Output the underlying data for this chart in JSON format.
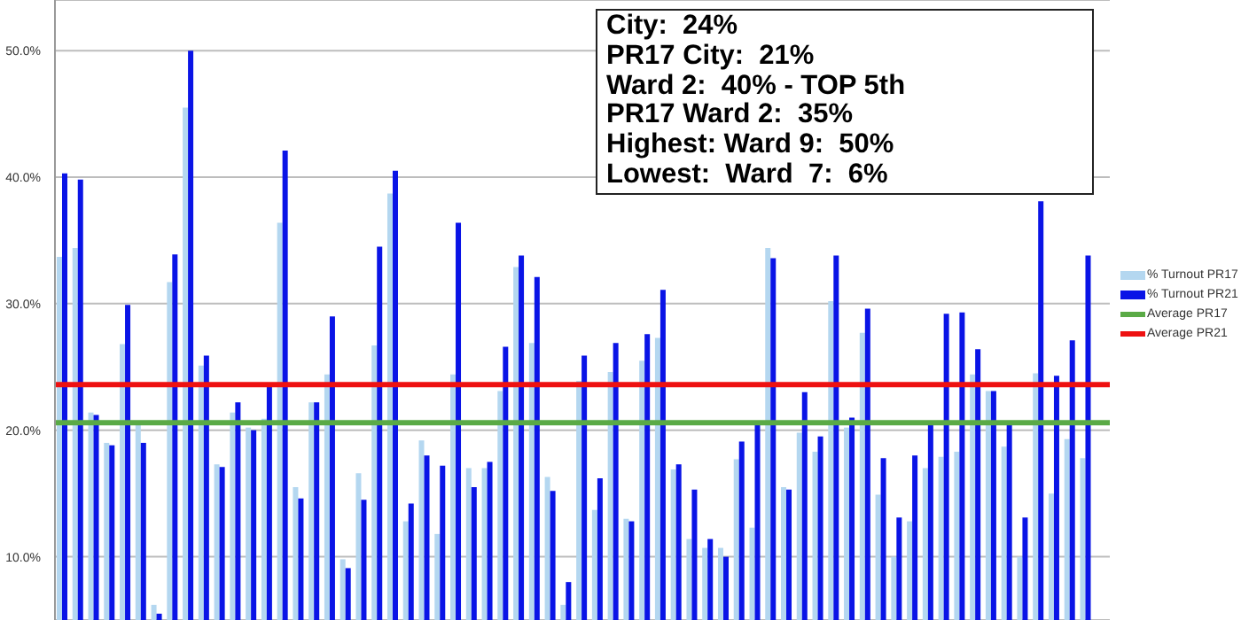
{
  "chart_data": {
    "type": "bar",
    "categories": [
      null,
      null,
      null,
      null,
      null,
      null,
      null,
      null,
      null,
      null,
      null,
      null,
      null,
      null,
      null,
      null,
      null,
      null,
      null,
      null,
      null,
      null,
      null,
      null,
      null,
      null,
      null,
      null,
      null,
      null,
      null,
      null,
      null,
      null,
      null,
      null,
      null,
      null,
      null,
      null,
      null,
      null,
      null,
      null,
      null,
      null,
      null,
      null,
      null,
      null,
      null,
      null,
      null,
      null,
      null,
      null,
      null,
      null,
      null,
      null,
      null,
      null,
      null,
      null,
      null,
      null,
      null
    ],
    "series": [
      {
        "name": "% Turnout PR17",
        "color": "#b4d7f0",
        "values": [
          33.7,
          34.4,
          21.4,
          19.0,
          26.8,
          20.4,
          6.2,
          31.7,
          45.5,
          25.1,
          17.3,
          21.4,
          20.2,
          20.9,
          36.4,
          15.5,
          22.2,
          24.4,
          9.8,
          16.6,
          26.7,
          38.7,
          12.8,
          19.2,
          11.8,
          24.4,
          17.0,
          17.0,
          23.1,
          32.9,
          26.9,
          16.3,
          6.2,
          23.9,
          13.7,
          24.6,
          13.0,
          25.5,
          27.3,
          16.9,
          11.4,
          10.7,
          10.7,
          17.7,
          12.3,
          34.4,
          15.5,
          19.8,
          18.3,
          30.2,
          20.2,
          27.7,
          14.9,
          10.0,
          12.8,
          17.0,
          17.9,
          18.3,
          24.4,
          23.1,
          18.7,
          10.0,
          24.5,
          15.0,
          19.3,
          17.8,
          null
        ]
      },
      {
        "name": "% Turnout PR21",
        "color": "#0a14e6",
        "values": [
          40.3,
          39.8,
          21.2,
          18.8,
          29.9,
          19.0,
          5.5,
          33.9,
          50.0,
          25.9,
          17.1,
          22.2,
          20.0,
          23.5,
          42.1,
          14.6,
          22.2,
          29.0,
          9.1,
          14.5,
          34.5,
          40.5,
          14.2,
          18.0,
          17.2,
          36.4,
          15.5,
          17.5,
          26.6,
          33.8,
          32.1,
          15.2,
          8.0,
          25.9,
          16.2,
          26.9,
          12.8,
          27.6,
          31.1,
          17.3,
          15.3,
          11.4,
          10.0,
          19.1,
          20.5,
          33.6,
          15.3,
          23.0,
          19.5,
          33.8,
          21.0,
          29.6,
          17.8,
          13.1,
          18.0,
          20.6,
          29.2,
          29.3,
          26.4,
          23.1,
          20.6,
          13.1,
          38.1,
          24.3,
          27.1,
          33.8,
          null
        ]
      }
    ],
    "ref_lines": [
      {
        "axis": "y",
        "value": 20.6,
        "label": "Average PR17",
        "color": "#5aaa46"
      },
      {
        "axis": "y",
        "value": 23.6,
        "label": "Average PR21",
        "color": "#ee1111"
      }
    ],
    "ylim": [
      5,
      54
    ],
    "yticks": [
      {
        "value": 10,
        "label": "10.0%"
      },
      {
        "value": 20,
        "label": "20.0%"
      },
      {
        "value": 30,
        "label": "30.0%"
      },
      {
        "value": 40,
        "label": "40.0%"
      },
      {
        "value": 50,
        "label": "50.0%"
      }
    ],
    "grid": "y",
    "legend": "right",
    "tick_labels": "y",
    "annotations": [
      "City:  24%",
      "PR17 City:  21%",
      "Ward 2:  40% - TOP 5th",
      "PR17 Ward 2:  35%",
      "Highest: Ward 9:  50%",
      "Lowest:  Ward  7:  6%"
    ]
  }
}
